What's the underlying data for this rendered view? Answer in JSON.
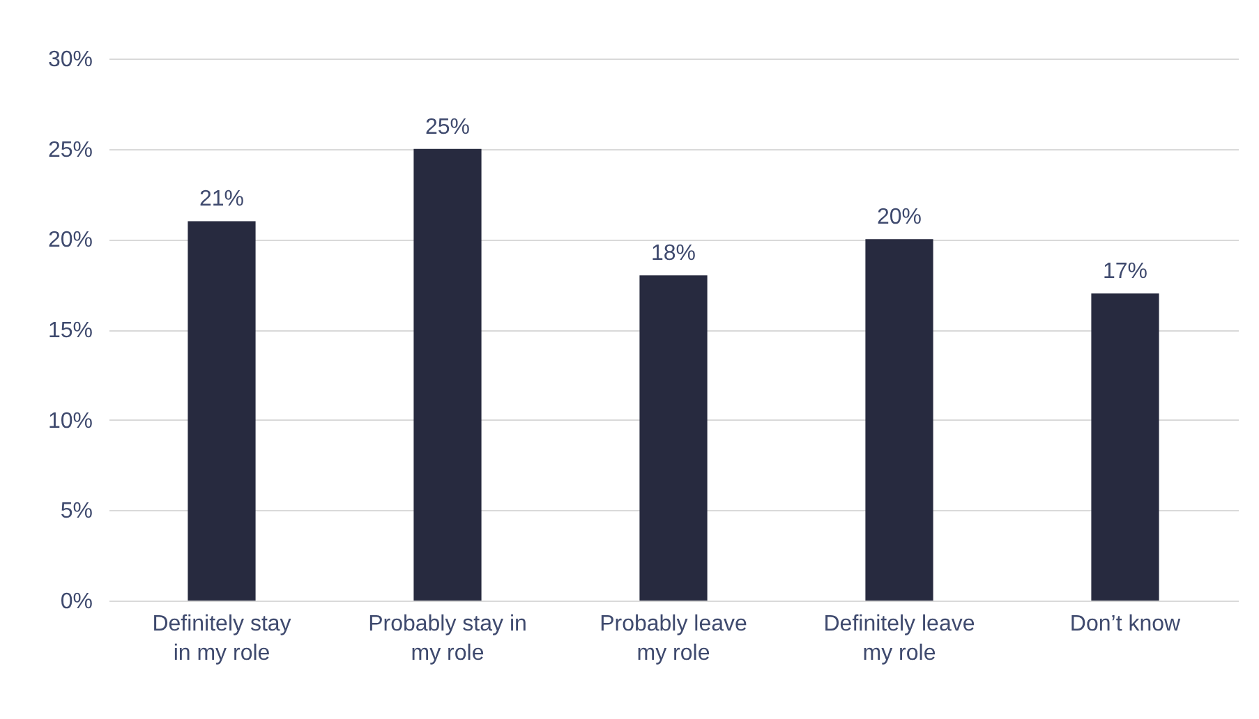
{
  "chart_data": {
    "type": "bar",
    "categories": [
      "Definitely stay in my role",
      "Probably stay in my role",
      "Probably leave my role",
      "Definitely leave my role",
      "Don’t know"
    ],
    "values": [
      21,
      25,
      18,
      20,
      17
    ],
    "value_labels": [
      "21%",
      "25%",
      "18%",
      "20%",
      "17%"
    ],
    "color": "#272a3f",
    "ylim": [
      0,
      30
    ],
    "yticks": [
      {
        "value": 0,
        "label": "0%"
      },
      {
        "value": 5,
        "label": "5%"
      },
      {
        "value": 10,
        "label": "10%"
      },
      {
        "value": 15,
        "label": "15%"
      },
      {
        "value": 20,
        "label": "20%"
      },
      {
        "value": 25,
        "label": "25%"
      },
      {
        "value": 30,
        "label": "30%"
      }
    ],
    "grid": "y"
  }
}
